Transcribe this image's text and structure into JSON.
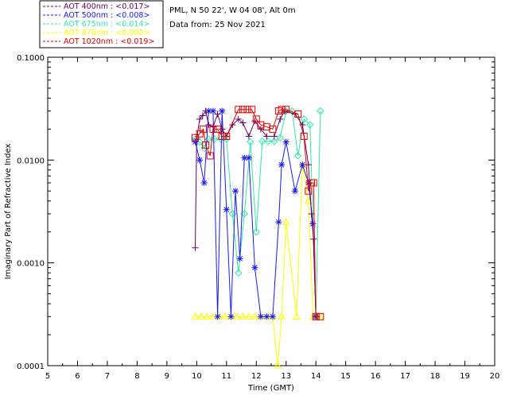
{
  "header": {
    "location": "PML, N 50 22', W 04 08', Alt 0m",
    "date_line": "Data from: 25 Nov 2021"
  },
  "colors": {
    "aot400": "#660066",
    "aot500": "#1a1aff",
    "aot675": "#33e6a6",
    "aot870": "#ffff00",
    "aot1020": "#e60000"
  },
  "chart_data": {
    "type": "line",
    "title": "",
    "xlabel": "Time (GMT)",
    "ylabel": "Imaginary Part of Refractive Index",
    "xlim": [
      5,
      20
    ],
    "ylim": [
      0.0001,
      0.1
    ],
    "y_scale": "log",
    "grid": false,
    "legend_position": "top-left, outside plot",
    "x_ticks": [
      "5",
      "6",
      "7",
      "8",
      "9",
      "10",
      "11",
      "12",
      "13",
      "14",
      "15",
      "16",
      "17",
      "18",
      "19",
      "20"
    ],
    "y_ticks": [
      "0.0001",
      "0.0010",
      "0.0100",
      "0.1000"
    ],
    "series": [
      {
        "name": "AOT  400nm : <0.017>",
        "color": "#660066",
        "marker": "plus",
        "x": [
          9.95,
          10.0,
          10.1,
          10.2,
          10.3,
          10.4,
          10.55,
          10.7,
          10.85,
          11.0,
          11.2,
          11.4,
          11.55,
          11.75,
          11.95,
          12.15,
          12.35,
          12.6,
          12.8,
          12.95,
          13.3,
          13.55,
          13.75,
          13.85,
          13.92,
          14.0
        ],
        "y": [
          0.0014,
          0.016,
          0.025,
          0.027,
          0.03,
          0.022,
          0.021,
          0.028,
          0.02,
          0.017,
          0.022,
          0.025,
          0.023,
          0.017,
          0.024,
          0.02,
          0.017,
          0.017,
          0.025,
          0.03,
          0.028,
          0.022,
          0.009,
          0.003,
          0.0017,
          0.0003
        ]
      },
      {
        "name": "AOT  500nm : <0.008>",
        "color": "#1a1aff",
        "marker": "asterisk",
        "x": [
          9.95,
          10.1,
          10.25,
          10.4,
          10.55,
          10.7,
          10.85,
          11.0,
          11.15,
          11.3,
          11.45,
          11.6,
          11.75,
          11.95,
          12.15,
          12.35,
          12.55,
          12.75,
          12.85,
          13.0,
          13.3,
          13.55,
          13.75,
          13.9,
          14.0
        ],
        "y": [
          0.015,
          0.01,
          0.006,
          0.03,
          0.03,
          0.0003,
          0.03,
          0.0033,
          0.0003,
          0.005,
          0.0011,
          0.0105,
          0.0105,
          0.0009,
          0.0003,
          0.0003,
          0.0003,
          0.0025,
          0.009,
          0.015,
          0.005,
          0.009,
          0.006,
          0.0024,
          0.0003
        ]
      },
      {
        "name": "AOT  675nm : <0.014>",
        "color": "#33e6a6",
        "marker": "diamond",
        "x": [
          9.95,
          10.1,
          10.25,
          10.4,
          10.6,
          10.8,
          11.0,
          11.2,
          11.4,
          11.6,
          11.8,
          12.0,
          12.2,
          12.4,
          12.6,
          12.8,
          13.0,
          13.2,
          13.4,
          13.6,
          13.8,
          14.0,
          14.15
        ],
        "y": [
          0.016,
          0.015,
          0.013,
          0.016,
          0.016,
          0.016,
          0.016,
          0.003,
          0.0008,
          0.003,
          0.015,
          0.002,
          0.0152,
          0.0152,
          0.0152,
          0.0165,
          0.03,
          0.03,
          0.011,
          0.025,
          0.022,
          0.0003,
          0.03
        ]
      },
      {
        "name": "AOT  870nm : <0.002>",
        "color": "#ffff00",
        "marker": "triangle",
        "x": [
          9.95,
          10.15,
          10.35,
          10.55,
          10.75,
          10.95,
          11.15,
          11.35,
          11.55,
          11.75,
          11.95,
          12.15,
          12.35,
          12.55,
          12.72,
          12.85,
          13.0,
          13.35,
          13.55,
          13.75,
          13.9,
          14.0,
          14.15
        ],
        "y": [
          0.0003,
          0.0003,
          0.0003,
          0.0003,
          0.0003,
          0.0003,
          0.0003,
          0.0003,
          0.0003,
          0.0003,
          0.0003,
          0.0003,
          0.0003,
          0.0003,
          0.0001,
          0.0003,
          0.0025,
          0.0003,
          0.009,
          0.004,
          0.0003,
          0.0003,
          0.0003
        ]
      },
      {
        "name": "AOT 1020nm : <0.019>",
        "color": "#e60000",
        "marker": "square",
        "x": [
          9.95,
          10.1,
          10.22,
          10.3,
          10.45,
          10.55,
          10.7,
          10.85,
          11.0,
          11.4,
          11.55,
          11.7,
          11.85,
          12.0,
          12.15,
          12.35,
          12.55,
          12.75,
          12.85,
          13.0,
          13.4,
          13.6,
          13.75,
          13.85,
          13.92,
          14.0,
          14.15
        ],
        "y": [
          0.0165,
          0.018,
          0.02,
          0.014,
          0.011,
          0.02,
          0.02,
          0.017,
          0.017,
          0.031,
          0.031,
          0.031,
          0.031,
          0.025,
          0.022,
          0.021,
          0.02,
          0.03,
          0.031,
          0.031,
          0.028,
          0.017,
          0.005,
          0.006,
          0.006,
          0.0003,
          0.0003
        ]
      }
    ]
  }
}
